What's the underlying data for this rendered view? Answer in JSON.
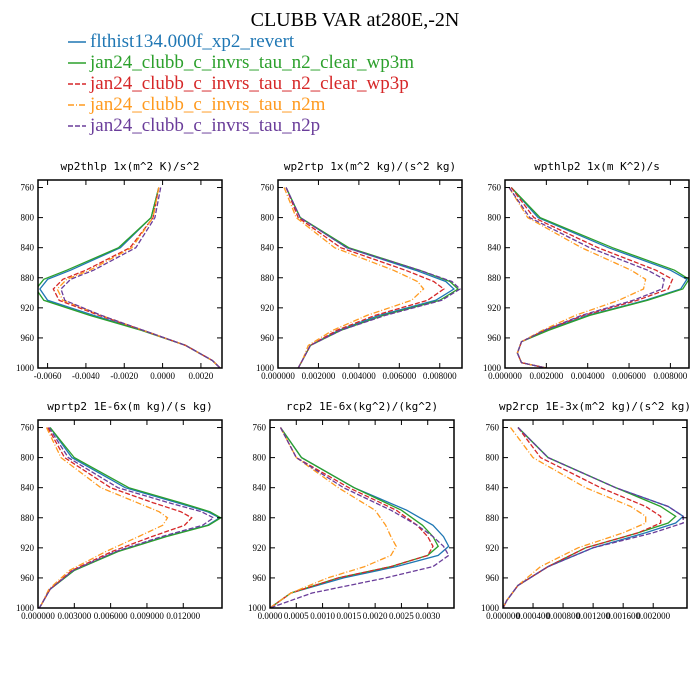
{
  "title": "CLUBB VAR at280E,-2N",
  "legend": [
    {
      "label": "flthist134.000f_xp2_revert",
      "color": "#1f77b4",
      "dash": ""
    },
    {
      "label": "jan24_clubb_c_invrs_tau_n2_clear_wp3m",
      "color": "#2ca02c",
      "dash": ""
    },
    {
      "label": "jan24_clubb_c_invrs_tau_n2_clear_wp3p",
      "color": "#d62728",
      "dash": "5,2"
    },
    {
      "label": "jan24_clubb_c_invrs_tau_n2m",
      "color": "#ff9a1f",
      "dash": "6,2,1,2"
    },
    {
      "label": "jan24_clubb_c_invrs_tau_n2p",
      "color": "#6a3d9a",
      "dash": "5,2"
    }
  ],
  "chart_data": [
    {
      "type": "line",
      "title": "wp2thlp  1x(m^2 K)/s^2",
      "xlim": [
        -0.0065,
        0.0031
      ],
      "xticks": [
        -0.006,
        -0.004,
        -0.002,
        0.0,
        0.002
      ],
      "xtick_labels": [
        "-0.0060",
        "-0.0040",
        "-0.0020",
        "0.0000",
        "0.0020"
      ],
      "ylim": [
        1000,
        750
      ],
      "yticks": [
        760,
        800,
        840,
        880,
        920,
        960,
        1000
      ],
      "y": [
        760,
        800,
        840,
        870,
        882,
        895,
        910,
        930,
        950,
        970,
        990,
        1000
      ],
      "series": [
        {
          "name": "flthist134.000f_xp2_revert",
          "values": [
            -0.0002,
            -0.0006,
            -0.0022,
            -0.0048,
            -0.006,
            -0.0064,
            -0.006,
            -0.0036,
            -0.001,
            0.0012,
            0.0026,
            0.003
          ]
        },
        {
          "name": "jan24_clubb_c_invrs_tau_n2_clear_wp3m",
          "values": [
            -0.0002,
            -0.0006,
            -0.0023,
            -0.005,
            -0.0062,
            -0.0066,
            -0.0062,
            -0.0038,
            -0.0011,
            0.0012,
            0.0026,
            0.003
          ]
        },
        {
          "name": "jan24_clubb_c_invrs_tau_n2_clear_wp3p",
          "values": [
            -0.0002,
            -0.0005,
            -0.0017,
            -0.004,
            -0.0052,
            -0.0057,
            -0.0054,
            -0.0033,
            -0.001,
            0.0012,
            0.0026,
            0.003
          ]
        },
        {
          "name": "jan24_clubb_c_invrs_tau_n2m",
          "values": [
            -0.0002,
            -0.0005,
            -0.0016,
            -0.0038,
            -0.005,
            -0.0055,
            -0.0052,
            -0.0032,
            -0.001,
            0.0012,
            0.0026,
            0.003
          ]
        },
        {
          "name": "jan24_clubb_c_invrs_tau_n2p",
          "values": [
            -0.0001,
            -0.0004,
            -0.0014,
            -0.0036,
            -0.0048,
            -0.0053,
            -0.0051,
            -0.0032,
            -0.001,
            0.0012,
            0.0026,
            0.003
          ]
        }
      ]
    },
    {
      "type": "line",
      "title": "wp2rtp  1x(m^2 kg)/(s^2 kg)",
      "xlim": [
        0.0,
        0.0091
      ],
      "xticks": [
        0.0,
        0.002,
        0.004,
        0.006,
        0.008
      ],
      "xtick_labels": [
        "0.000000",
        "0.002000",
        "0.004000",
        "0.006000",
        "0.008000"
      ],
      "ylim": [
        1000,
        750
      ],
      "yticks": [
        760,
        800,
        840,
        880,
        920,
        960,
        1000
      ],
      "y": [
        760,
        800,
        840,
        870,
        885,
        895,
        910,
        930,
        950,
        970,
        990,
        1000
      ],
      "series": [
        {
          "name": "flthist134.000f_xp2_revert",
          "values": [
            0.0004,
            0.0011,
            0.0034,
            0.0068,
            0.0083,
            0.0087,
            0.0078,
            0.005,
            0.003,
            0.0016,
            0.0012,
            0.001
          ]
        },
        {
          "name": "jan24_clubb_c_invrs_tau_n2_clear_wp3m",
          "values": [
            0.0004,
            0.0011,
            0.0035,
            0.007,
            0.0085,
            0.0089,
            0.008,
            0.0052,
            0.0031,
            0.0016,
            0.0012,
            0.001
          ]
        },
        {
          "name": "jan24_clubb_c_invrs_tau_n2_clear_wp3p",
          "values": [
            0.0004,
            0.001,
            0.0031,
            0.0063,
            0.0077,
            0.0082,
            0.0074,
            0.0048,
            0.0029,
            0.0016,
            0.0012,
            0.001
          ]
        },
        {
          "name": "jan24_clubb_c_invrs_tau_n2m",
          "values": [
            0.0003,
            0.0009,
            0.0028,
            0.0057,
            0.0069,
            0.0072,
            0.0066,
            0.0044,
            0.0027,
            0.0015,
            0.0012,
            0.001
          ]
        },
        {
          "name": "jan24_clubb_c_invrs_tau_n2p",
          "values": [
            0.0004,
            0.0011,
            0.0034,
            0.007,
            0.0086,
            0.009,
            0.0081,
            0.0053,
            0.0031,
            0.0016,
            0.0012,
            0.001
          ]
        }
      ]
    },
    {
      "type": "line",
      "title": "wpthlp2  1x(m K^2)/s",
      "xlim": [
        0.0,
        0.0089
      ],
      "xticks": [
        0.0,
        0.002,
        0.004,
        0.006,
        0.008
      ],
      "xtick_labels": [
        "0.000000",
        "0.002000",
        "0.004000",
        "0.006000",
        "0.008000"
      ],
      "ylim": [
        1000,
        750
      ],
      "yticks": [
        760,
        800,
        840,
        880,
        920,
        960,
        1000
      ],
      "y": [
        760,
        800,
        840,
        870,
        882,
        895,
        910,
        930,
        950,
        965,
        980,
        993,
        1000
      ],
      "series": [
        {
          "name": "flthist134.000f_xp2_revert",
          "values": [
            0.0003,
            0.0016,
            0.005,
            0.008,
            0.0088,
            0.0085,
            0.0068,
            0.004,
            0.002,
            0.0008,
            0.0006,
            0.0008,
            0.002
          ]
        },
        {
          "name": "jan24_clubb_c_invrs_tau_n2_clear_wp3m",
          "values": [
            0.0003,
            0.0017,
            0.0052,
            0.0082,
            0.0089,
            0.0086,
            0.0069,
            0.0041,
            0.0021,
            0.0008,
            0.0006,
            0.0008,
            0.002
          ]
        },
        {
          "name": "jan24_clubb_c_invrs_tau_n2_clear_wp3p",
          "values": [
            0.0003,
            0.0014,
            0.0045,
            0.0073,
            0.0081,
            0.0079,
            0.0064,
            0.0038,
            0.0019,
            0.0008,
            0.0006,
            0.0008,
            0.002
          ]
        },
        {
          "name": "jan24_clubb_c_invrs_tau_n2m",
          "values": [
            0.0002,
            0.0011,
            0.0037,
            0.0061,
            0.0068,
            0.0067,
            0.0055,
            0.0034,
            0.0018,
            0.0008,
            0.0006,
            0.0008,
            0.002
          ]
        },
        {
          "name": "jan24_clubb_c_invrs_tau_n2p",
          "values": [
            0.0002,
            0.0012,
            0.0041,
            0.0069,
            0.0077,
            0.0076,
            0.0062,
            0.0037,
            0.0019,
            0.0008,
            0.0006,
            0.0008,
            0.002
          ]
        }
      ]
    },
    {
      "type": "line",
      "title": "wprtp2  1E-6x(m kg)/(s kg)",
      "xlim": [
        0.0,
        0.0152
      ],
      "xticks": [
        0.0,
        0.003,
        0.006,
        0.009,
        0.012
      ],
      "xtick_labels": [
        "0.000000",
        "0.003000",
        "0.006000",
        "0.009000",
        "0.012000"
      ],
      "ylim": [
        1000,
        750
      ],
      "yticks": [
        760,
        800,
        840,
        880,
        920,
        960,
        1000
      ],
      "y": [
        760,
        800,
        840,
        860,
        872,
        880,
        890,
        905,
        925,
        950,
        975,
        995,
        1000
      ],
      "series": [
        {
          "name": "flthist134.000f_xp2_revert",
          "values": [
            0.001,
            0.0028,
            0.0072,
            0.0115,
            0.014,
            0.015,
            0.014,
            0.0105,
            0.0065,
            0.003,
            0.001,
            0.0003,
            0.0001
          ]
        },
        {
          "name": "jan24_clubb_c_invrs_tau_n2_clear_wp3m",
          "values": [
            0.001,
            0.003,
            0.0075,
            0.0118,
            0.0142,
            0.0151,
            0.0141,
            0.0106,
            0.0066,
            0.003,
            0.001,
            0.0003,
            0.0001
          ]
        },
        {
          "name": "jan24_clubb_c_invrs_tau_n2_clear_wp3p",
          "values": [
            0.0008,
            0.0022,
            0.006,
            0.0095,
            0.0118,
            0.0127,
            0.0121,
            0.0094,
            0.0061,
            0.0028,
            0.001,
            0.0003,
            0.0001
          ]
        },
        {
          "name": "jan24_clubb_c_invrs_tau_n2m",
          "values": [
            0.0007,
            0.0019,
            0.0052,
            0.0082,
            0.01,
            0.0107,
            0.0103,
            0.0083,
            0.0056,
            0.0026,
            0.0009,
            0.0003,
            0.0001
          ]
        },
        {
          "name": "jan24_clubb_c_invrs_tau_n2p",
          "values": [
            0.0009,
            0.0025,
            0.0066,
            0.0108,
            0.0135,
            0.0145,
            0.0136,
            0.0102,
            0.0064,
            0.0029,
            0.001,
            0.0003,
            0.0001
          ]
        }
      ]
    },
    {
      "type": "line",
      "title": "rcp2  1E-6x(kg^2)/(kg^2)",
      "xlim": [
        0.0,
        0.0035
      ],
      "xticks": [
        0.0,
        0.0005,
        0.001,
        0.0015,
        0.002,
        0.0025,
        0.003
      ],
      "xtick_labels": [
        "0.0000",
        "0.0005",
        "0.0010",
        "0.0015",
        "0.0020",
        "0.0025",
        "0.0030"
      ],
      "ylim": [
        1000,
        750
      ],
      "yticks": [
        760,
        800,
        840,
        880,
        920,
        960,
        1000
      ],
      "y": [
        760,
        800,
        840,
        870,
        890,
        905,
        918,
        930,
        945,
        960,
        980,
        995,
        1000
      ],
      "series": [
        {
          "name": "flthist134.000f_xp2_revert",
          "values": [
            0.0002,
            0.0006,
            0.0016,
            0.0026,
            0.0031,
            0.0033,
            0.0034,
            0.0032,
            0.0024,
            0.0014,
            0.0004,
            0.0001,
            0.0
          ]
        },
        {
          "name": "jan24_clubb_c_invrs_tau_n2_clear_wp3m",
          "values": [
            0.0002,
            0.0006,
            0.0016,
            0.0025,
            0.0029,
            0.0031,
            0.0032,
            0.003,
            0.0023,
            0.0013,
            0.0004,
            0.0001,
            0.0
          ]
        },
        {
          "name": "jan24_clubb_c_invrs_tau_n2_clear_wp3p",
          "values": [
            0.0002,
            0.0005,
            0.0015,
            0.0024,
            0.0028,
            0.003,
            0.0031,
            0.003,
            0.0023,
            0.0013,
            0.0004,
            0.0001,
            0.0
          ]
        },
        {
          "name": "jan24_clubb_c_invrs_tau_n2m",
          "values": [
            0.0002,
            0.0005,
            0.0013,
            0.002,
            0.0022,
            0.0023,
            0.0024,
            0.0023,
            0.0018,
            0.0011,
            0.0004,
            0.0001,
            0.0
          ]
        },
        {
          "name": "jan24_clubb_c_invrs_tau_n2p",
          "values": [
            0.0002,
            0.0005,
            0.0014,
            0.0023,
            0.0028,
            0.0031,
            0.0033,
            0.0034,
            0.0031,
            0.0022,
            0.0008,
            0.0002,
            0.0
          ]
        }
      ]
    },
    {
      "type": "line",
      "title": "wp2rcp  1E-3x(m^2 kg)/(s^2 kg)",
      "xlim": [
        0.0,
        0.00245
      ],
      "xticks": [
        0.0,
        0.0004,
        0.0008,
        0.0012,
        0.0016,
        0.002
      ],
      "xtick_labels": [
        "0.000000",
        "0.000400",
        "0.000800",
        "0.001200",
        "0.001600",
        "0.002000"
      ],
      "ylim": [
        1000,
        750
      ],
      "yticks": [
        760,
        800,
        840,
        880,
        920,
        960,
        1000
      ],
      "y": [
        760,
        800,
        840,
        865,
        878,
        887,
        900,
        920,
        945,
        970,
        990,
        1000
      ],
      "series": [
        {
          "name": "flthist134.000f_xp2_revert",
          "values": [
            0.0002,
            0.0006,
            0.0015,
            0.0022,
            0.0024,
            0.0023,
            0.0019,
            0.0012,
            0.0006,
            0.0002,
            5e-05,
            0.0
          ]
        },
        {
          "name": "jan24_clubb_c_invrs_tau_n2_clear_wp3m",
          "values": [
            0.0002,
            0.0006,
            0.0015,
            0.0021,
            0.0023,
            0.0022,
            0.0018,
            0.0011,
            0.0006,
            0.0002,
            5e-05,
            0.0
          ]
        },
        {
          "name": "jan24_clubb_c_invrs_tau_n2_clear_wp3p",
          "values": [
            0.0002,
            0.0005,
            0.0013,
            0.0019,
            0.0021,
            0.0021,
            0.0018,
            0.0011,
            0.0006,
            0.0002,
            5e-05,
            0.0
          ]
        },
        {
          "name": "jan24_clubb_c_invrs_tau_n2m",
          "values": [
            0.0001,
            0.0004,
            0.0011,
            0.0017,
            0.0019,
            0.0019,
            0.0016,
            0.001,
            0.0005,
            0.0002,
            5e-05,
            0.0
          ]
        },
        {
          "name": "jan24_clubb_c_invrs_tau_n2p",
          "values": [
            0.0002,
            0.0006,
            0.0015,
            0.0022,
            0.0024,
            0.0024,
            0.002,
            0.0012,
            0.0006,
            0.0002,
            5e-05,
            0.0
          ]
        }
      ]
    }
  ]
}
